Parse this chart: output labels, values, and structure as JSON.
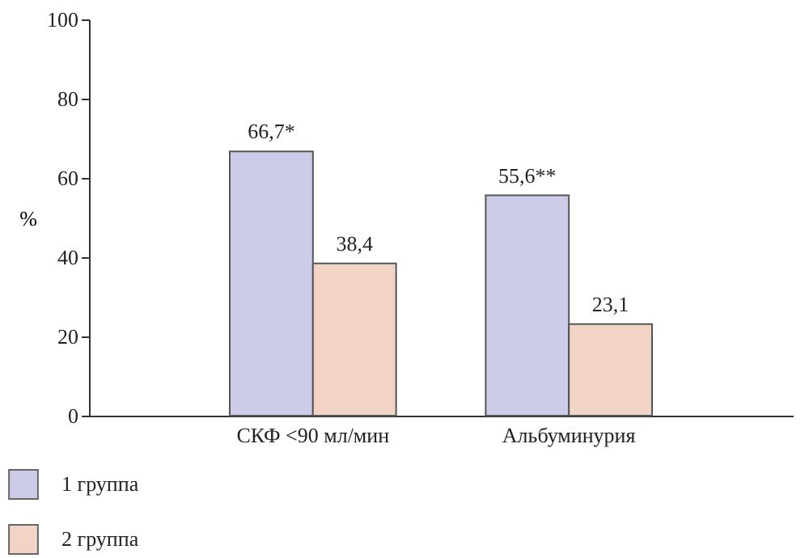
{
  "chart_data": {
    "type": "bar",
    "ylabel": "%",
    "categories": [
      "СКФ <90 мл/мин",
      "Альбуминурия"
    ],
    "series": [
      {
        "name": "1 группа",
        "color": "#cccce8",
        "values": [
          66.7,
          55.6
        ],
        "value_labels": [
          "66,7*",
          "55,6**"
        ]
      },
      {
        "name": "2 группа",
        "color": "#f2d4c6",
        "values": [
          38.4,
          23.1
        ],
        "value_labels": [
          "38,4",
          "23,1"
        ]
      }
    ],
    "ylim": [
      0,
      100
    ],
    "yticks": [
      0,
      20,
      40,
      60,
      80,
      100
    ],
    "legend": "bottom left"
  }
}
